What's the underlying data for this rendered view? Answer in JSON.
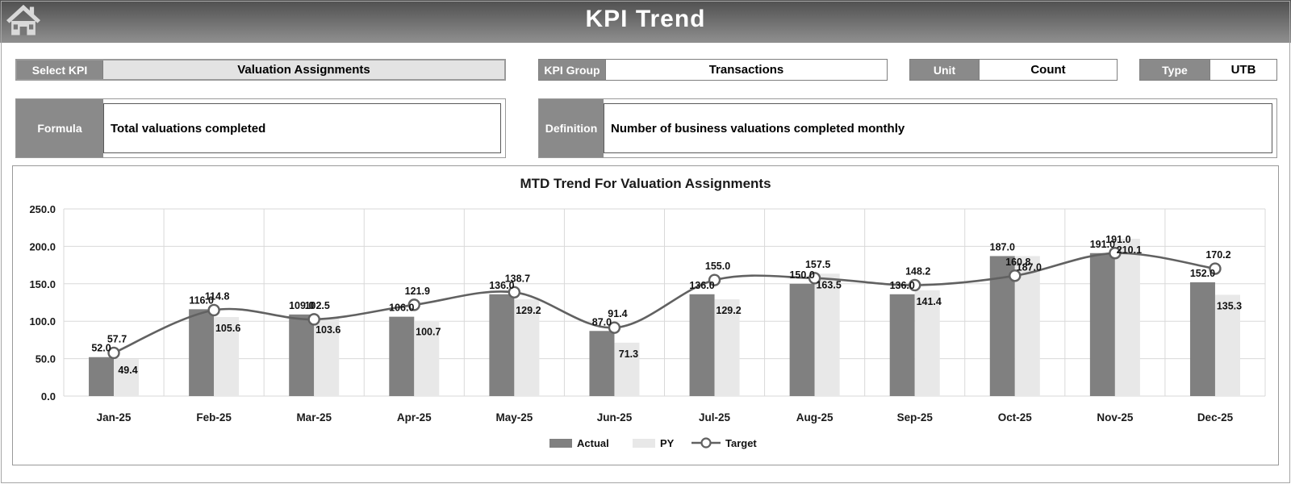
{
  "header": {
    "title": "KPI Trend"
  },
  "fields": {
    "select_kpi": {
      "label": "Select KPI",
      "value": "Valuation Assignments"
    },
    "kpi_group": {
      "label": "KPI Group",
      "value": "Transactions"
    },
    "unit": {
      "label": "Unit",
      "value": "Count"
    },
    "type": {
      "label": "Type",
      "value": "UTB"
    },
    "formula": {
      "label": "Formula",
      "value": "Total valuations completed"
    },
    "definition": {
      "label": "Definition",
      "value": "Number of business valuations completed monthly"
    }
  },
  "chart_data": {
    "type": "bar",
    "title": "MTD Trend For Valuation Assignments",
    "categories": [
      "Jan-25",
      "Feb-25",
      "Mar-25",
      "Apr-25",
      "May-25",
      "Jun-25",
      "Jul-25",
      "Aug-25",
      "Sep-25",
      "Oct-25",
      "Nov-25",
      "Dec-25"
    ],
    "series": [
      {
        "name": "Actual",
        "type": "bar",
        "color": "#808080",
        "values": [
          52.0,
          116.0,
          109.0,
          106.0,
          136.0,
          87.0,
          136.0,
          150.0,
          136.0,
          187.0,
          191.0,
          152.0
        ]
      },
      {
        "name": "PY",
        "type": "bar",
        "color": "#e8e8e8",
        "values": [
          49.4,
          105.6,
          103.6,
          100.7,
          129.2,
          71.3,
          129.2,
          163.5,
          141.4,
          187.0,
          210.1,
          135.3
        ]
      },
      {
        "name": "Target",
        "type": "line",
        "color": "#616161",
        "values": [
          57.7,
          114.8,
          102.5,
          121.9,
          138.7,
          91.4,
          155.0,
          157.5,
          148.2,
          160.8,
          191.0,
          170.2
        ]
      }
    ],
    "xlabel": "",
    "ylabel": "",
    "ylim": [
      0,
      250
    ],
    "ytick_step": 50,
    "grid": true,
    "legend_position": "bottom",
    "colors": {
      "grid": "#d9d9d9",
      "text": "#111111"
    }
  }
}
